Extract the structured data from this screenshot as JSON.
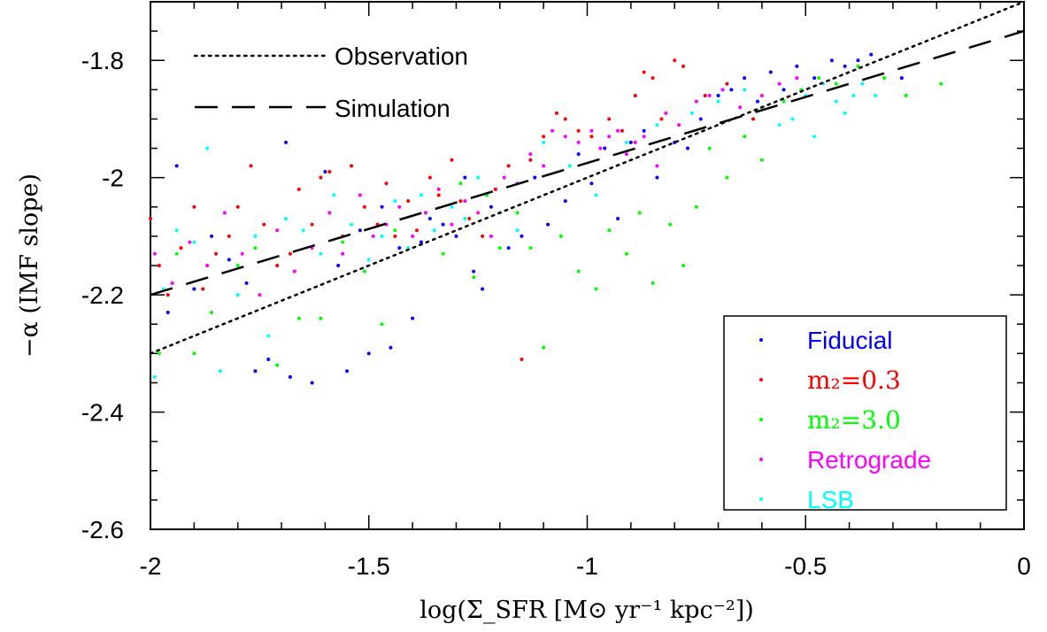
{
  "chart_data": {
    "type": "scatter",
    "title": "",
    "xlabel": "log(Σ_SFR [M⊙ yr⁻¹ kpc⁻²])",
    "ylabel": "−α (IMF slope)",
    "xlim": [
      -2,
      0
    ],
    "ylim": [
      -2.6,
      -1.7
    ],
    "x_ticks": [
      -2,
      -1.5,
      -1,
      -0.5,
      0
    ],
    "x_tick_labels": [
      "-2",
      "-1.5",
      "-1",
      "-0.5",
      "0"
    ],
    "y_ticks": [
      -2.6,
      -2.4,
      -2.2,
      -2.0,
      -1.8
    ],
    "y_tick_labels": [
      "-2.6",
      "-2.4",
      "-2.2",
      "-2",
      "-1.8"
    ],
    "lines": [
      {
        "name": "Observation",
        "style": "dotted",
        "color": "#000000",
        "x": [
          -2,
          0
        ],
        "y": [
          -2.3,
          -1.7
        ]
      },
      {
        "name": "Simulation",
        "style": "dashed",
        "color": "#000000",
        "x": [
          -2,
          0
        ],
        "y": [
          -2.2,
          -1.75
        ]
      }
    ],
    "series": [
      {
        "name": "Fiducial",
        "color": "#0000ff",
        "points": [
          [
            -1.96,
            -2.23
          ],
          [
            -1.94,
            -1.98
          ],
          [
            -1.9,
            -2.19
          ],
          [
            -1.86,
            -2.1
          ],
          [
            -1.82,
            -2.14
          ],
          [
            -1.78,
            -2.18
          ],
          [
            -1.76,
            -2.33
          ],
          [
            -1.73,
            -2.31
          ],
          [
            -1.69,
            -1.94
          ],
          [
            -1.68,
            -2.34
          ],
          [
            -1.63,
            -2.35
          ],
          [
            -1.6,
            -1.99
          ],
          [
            -1.57,
            -2.15
          ],
          [
            -1.55,
            -2.33
          ],
          [
            -1.52,
            -2.09
          ],
          [
            -1.5,
            -2.3
          ],
          [
            -1.47,
            -2.05
          ],
          [
            -1.45,
            -2.29
          ],
          [
            -1.43,
            -2.12
          ],
          [
            -1.4,
            -2.24
          ],
          [
            -1.38,
            -2.11
          ],
          [
            -1.36,
            -2.07
          ],
          [
            -1.33,
            -2.08
          ],
          [
            -1.3,
            -2.1
          ],
          [
            -1.28,
            -2.0
          ],
          [
            -1.26,
            -2.16
          ],
          [
            -1.24,
            -2.19
          ],
          [
            -1.22,
            -2.05
          ],
          [
            -1.18,
            -2.12
          ],
          [
            -1.15,
            -2.1
          ],
          [
            -1.12,
            -2.0
          ],
          [
            -1.09,
            -2.08
          ],
          [
            -1.05,
            -2.04
          ],
          [
            -1.02,
            -1.96
          ],
          [
            -0.99,
            -2.01
          ],
          [
            -0.96,
            -1.95
          ],
          [
            -0.93,
            -2.07
          ],
          [
            -0.9,
            -1.94
          ],
          [
            -0.87,
            -1.92
          ],
          [
            -0.84,
            -2.0
          ],
          [
            -0.8,
            -1.94
          ],
          [
            -0.77,
            -1.95
          ],
          [
            -0.74,
            -1.9
          ],
          [
            -0.7,
            -1.86
          ],
          [
            -0.67,
            -1.85
          ],
          [
            -0.64,
            -1.83
          ],
          [
            -0.61,
            -1.87
          ],
          [
            -0.58,
            -1.82
          ],
          [
            -0.55,
            -1.85
          ],
          [
            -0.52,
            -1.81
          ],
          [
            -0.48,
            -1.83
          ],
          [
            -0.44,
            -1.8
          ],
          [
            -0.41,
            -1.81
          ],
          [
            -0.38,
            -1.8
          ],
          [
            -0.35,
            -1.79
          ],
          [
            -0.28,
            -1.83
          ]
        ]
      },
      {
        "name": "m₂=0.3",
        "color": "#ff0000",
        "points": [
          [
            -2.0,
            -2.07
          ],
          [
            -1.98,
            -2.15
          ],
          [
            -1.96,
            -2.2
          ],
          [
            -1.93,
            -2.12
          ],
          [
            -1.9,
            -2.05
          ],
          [
            -1.88,
            -2.19
          ],
          [
            -1.85,
            -2.13
          ],
          [
            -1.82,
            -2.1
          ],
          [
            -1.8,
            -2.05
          ],
          [
            -1.77,
            -1.98
          ],
          [
            -1.74,
            -2.08
          ],
          [
            -1.71,
            -2.15
          ],
          [
            -1.68,
            -2.13
          ],
          [
            -1.66,
            -2.02
          ],
          [
            -1.63,
            -2.08
          ],
          [
            -1.61,
            -2.0
          ],
          [
            -1.59,
            -1.99
          ],
          [
            -1.56,
            -2.1
          ],
          [
            -1.54,
            -1.98
          ],
          [
            -1.51,
            -2.05
          ],
          [
            -1.48,
            -2.08
          ],
          [
            -1.46,
            -2.01
          ],
          [
            -1.44,
            -2.1
          ],
          [
            -1.41,
            -2.04
          ],
          [
            -1.39,
            -2.09
          ],
          [
            -1.36,
            -2.0
          ],
          [
            -1.34,
            -2.03
          ],
          [
            -1.31,
            -1.97
          ],
          [
            -1.29,
            -2.04
          ],
          [
            -1.27,
            -2.07
          ],
          [
            -1.24,
            -2.1
          ],
          [
            -1.21,
            -2.02
          ],
          [
            -1.18,
            -1.98
          ],
          [
            -1.15,
            -2.31
          ],
          [
            -1.13,
            -1.97
          ],
          [
            -1.1,
            -1.93
          ],
          [
            -1.07,
            -1.89
          ],
          [
            -1.05,
            -1.9
          ],
          [
            -1.02,
            -1.92
          ],
          [
            -0.99,
            -1.93
          ],
          [
            -0.95,
            -1.9
          ],
          [
            -0.92,
            -1.92
          ],
          [
            -0.89,
            -1.86
          ],
          [
            -0.87,
            -1.82
          ],
          [
            -0.85,
            -1.83
          ],
          [
            -0.83,
            -1.9
          ],
          [
            -0.8,
            -1.8
          ],
          [
            -0.78,
            -1.81
          ],
          [
            -0.73,
            -1.86
          ],
          [
            -0.68,
            -1.84
          ],
          [
            -0.62,
            -1.9
          ]
        ]
      },
      {
        "name": "m₂=3.0",
        "color": "#00ff00",
        "points": [
          [
            -1.98,
            -2.3
          ],
          [
            -1.94,
            -2.13
          ],
          [
            -1.9,
            -2.3
          ],
          [
            -1.86,
            -2.23
          ],
          [
            -1.8,
            -2.15
          ],
          [
            -1.76,
            -2.12
          ],
          [
            -1.71,
            -2.32
          ],
          [
            -1.66,
            -2.24
          ],
          [
            -1.61,
            -2.24
          ],
          [
            -1.56,
            -2.11
          ],
          [
            -1.51,
            -2.16
          ],
          [
            -1.47,
            -2.25
          ],
          [
            -1.44,
            -2.09
          ],
          [
            -1.41,
            -2.12
          ],
          [
            -1.37,
            -2.06
          ],
          [
            -1.33,
            -2.13
          ],
          [
            -1.29,
            -2.01
          ],
          [
            -1.26,
            -2.17
          ],
          [
            -1.23,
            -2.03
          ],
          [
            -1.2,
            -2.12
          ],
          [
            -1.16,
            -2.06
          ],
          [
            -1.13,
            -2.12
          ],
          [
            -1.1,
            -2.29
          ],
          [
            -1.06,
            -2.1
          ],
          [
            -1.02,
            -2.16
          ],
          [
            -0.98,
            -2.19
          ],
          [
            -0.95,
            -2.09
          ],
          [
            -0.91,
            -2.13
          ],
          [
            -0.88,
            -2.06
          ],
          [
            -0.85,
            -2.18
          ],
          [
            -0.81,
            -2.08
          ],
          [
            -0.78,
            -2.15
          ],
          [
            -0.75,
            -2.05
          ],
          [
            -0.72,
            -1.95
          ],
          [
            -0.68,
            -2.0
          ],
          [
            -0.64,
            -1.93
          ],
          [
            -0.6,
            -1.97
          ],
          [
            -0.55,
            -1.87
          ],
          [
            -0.51,
            -1.85
          ],
          [
            -0.47,
            -1.83
          ],
          [
            -0.43,
            -1.84
          ],
          [
            -0.38,
            -1.81
          ],
          [
            -0.32,
            -1.83
          ],
          [
            -0.27,
            -1.86
          ],
          [
            -0.19,
            -1.84
          ]
        ]
      },
      {
        "name": "Retrograde",
        "color": "#ff00ff",
        "points": [
          [
            -1.99,
            -2.13
          ],
          [
            -1.95,
            -2.18
          ],
          [
            -1.91,
            -2.11
          ],
          [
            -1.87,
            -2.15
          ],
          [
            -1.83,
            -2.06
          ],
          [
            -1.79,
            -2.13
          ],
          [
            -1.75,
            -2.2
          ],
          [
            -1.71,
            -2.09
          ],
          [
            -1.67,
            -2.16
          ],
          [
            -1.63,
            -2.12
          ],
          [
            -1.59,
            -2.06
          ],
          [
            -1.56,
            -2.13
          ],
          [
            -1.52,
            -2.03
          ],
          [
            -1.49,
            -2.1
          ],
          [
            -1.46,
            -2.08
          ],
          [
            -1.43,
            -2.05
          ],
          [
            -1.4,
            -2.1
          ],
          [
            -1.37,
            -2.06
          ],
          [
            -1.34,
            -2.02
          ],
          [
            -1.31,
            -2.08
          ],
          [
            -1.28,
            -2.04
          ],
          [
            -1.25,
            -2.06
          ],
          [
            -1.22,
            -2.1
          ],
          [
            -1.19,
            -2.0
          ],
          [
            -1.16,
            -2.01
          ],
          [
            -1.13,
            -1.96
          ],
          [
            -1.1,
            -1.98
          ],
          [
            -1.08,
            -1.92
          ],
          [
            -1.05,
            -1.93
          ],
          [
            -1.02,
            -1.94
          ],
          [
            -0.99,
            -1.92
          ],
          [
            -0.97,
            -1.95
          ],
          [
            -0.95,
            -1.93
          ],
          [
            -0.93,
            -1.92
          ],
          [
            -0.91,
            -1.96
          ],
          [
            -0.89,
            -1.94
          ],
          [
            -0.87,
            -1.93
          ],
          [
            -0.84,
            -1.98
          ],
          [
            -0.82,
            -1.89
          ],
          [
            -0.79,
            -1.91
          ],
          [
            -0.75,
            -1.87
          ],
          [
            -0.72,
            -1.86
          ],
          [
            -0.69,
            -1.85
          ],
          [
            -0.65,
            -1.88
          ],
          [
            -0.6,
            -1.86
          ],
          [
            -0.56,
            -1.84
          ],
          [
            -0.52,
            -1.83
          ]
        ]
      },
      {
        "name": "LSB",
        "color": "#00ffff",
        "points": [
          [
            -1.99,
            -2.34
          ],
          [
            -1.97,
            -2.19
          ],
          [
            -1.94,
            -2.09
          ],
          [
            -1.9,
            -2.11
          ],
          [
            -1.87,
            -1.95
          ],
          [
            -1.84,
            -2.33
          ],
          [
            -1.8,
            -2.2
          ],
          [
            -1.76,
            -2.1
          ],
          [
            -1.73,
            -2.27
          ],
          [
            -1.69,
            -2.07
          ],
          [
            -1.65,
            -2.09
          ],
          [
            -1.61,
            -2.13
          ],
          [
            -1.58,
            -2.03
          ],
          [
            -1.54,
            -2.08
          ],
          [
            -1.5,
            -2.14
          ],
          [
            -1.47,
            -2.1
          ],
          [
            -1.44,
            -2.04
          ],
          [
            -1.41,
            -2.12
          ],
          [
            -1.38,
            -2.03
          ],
          [
            -1.35,
            -2.09
          ],
          [
            -1.31,
            -2.05
          ],
          [
            -1.28,
            -2.07
          ],
          [
            -1.25,
            -2.0
          ],
          [
            -1.2,
            -2.06
          ],
          [
            -1.16,
            -2.09
          ],
          [
            -1.1,
            -1.94
          ],
          [
            -1.04,
            -1.98
          ],
          [
            -0.98,
            -2.03
          ],
          [
            -0.91,
            -1.94
          ],
          [
            -0.84,
            -1.91
          ],
          [
            -0.76,
            -1.89
          ],
          [
            -0.7,
            -1.87
          ],
          [
            -0.64,
            -1.85
          ],
          [
            -0.6,
            -1.88
          ],
          [
            -0.56,
            -1.91
          ],
          [
            -0.53,
            -1.9
          ],
          [
            -0.5,
            -1.86
          ],
          [
            -0.48,
            -1.93
          ],
          [
            -0.46,
            -1.84
          ],
          [
            -0.43,
            -1.87
          ],
          [
            -0.41,
            -1.89
          ],
          [
            -0.39,
            -1.86
          ],
          [
            -0.37,
            -1.84
          ],
          [
            -0.34,
            -1.86
          ]
        ]
      }
    ],
    "legend": {
      "placement": "bottom-right",
      "entries": [
        {
          "label": "Fiducial",
          "color": "#0000ff",
          "font": "sans"
        },
        {
          "label": "m₂=0.3",
          "color": "#ff0000",
          "font": "serif"
        },
        {
          "label": "m₂=3.0",
          "color": "#00ff00",
          "font": "serif"
        },
        {
          "label": "Retrograde",
          "color": "#ff00ff",
          "font": "sans"
        },
        {
          "label": "LSB",
          "color": "#00ffff",
          "font": "sans"
        }
      ]
    },
    "line_legend": {
      "placement": "top-left",
      "entries": [
        {
          "label": "Observation",
          "style": "dotted"
        },
        {
          "label": "Simulation",
          "style": "dashed"
        }
      ]
    }
  }
}
